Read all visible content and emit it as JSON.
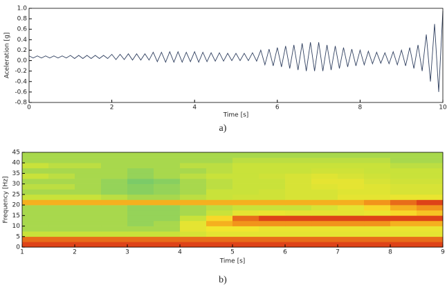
{
  "chart_data": [
    {
      "type": "line",
      "x_label": "Time [s]",
      "y_label": "Aceleration [g]",
      "caption": "a)",
      "color": "#2f3f5f",
      "x": [
        0,
        0.1,
        0.2,
        0.3,
        0.4,
        0.5,
        0.6,
        0.7,
        0.8,
        0.9,
        1,
        1.1,
        1.2,
        1.3,
        1.4,
        1.5,
        1.6,
        1.7,
        1.8,
        1.9,
        2,
        2.1,
        2.2,
        2.3,
        2.4,
        2.5,
        2.6,
        2.7,
        2.8,
        2.9,
        3,
        3.1,
        3.2,
        3.3,
        3.4,
        3.5,
        3.6,
        3.7,
        3.8,
        3.9,
        4,
        4.1,
        4.2,
        4.3,
        4.4,
        4.5,
        4.6,
        4.7,
        4.8,
        4.9,
        5,
        5.1,
        5.2,
        5.3,
        5.4,
        5.5,
        5.6,
        5.7,
        5.8,
        5.9,
        6,
        6.1,
        6.2,
        6.3,
        6.4,
        6.5,
        6.6,
        6.7,
        6.8,
        6.9,
        7,
        7.1,
        7.2,
        7.3,
        7.4,
        7.5,
        7.6,
        7.7,
        7.8,
        7.9,
        8,
        8.1,
        8.2,
        8.3,
        8.4,
        8.5,
        8.6,
        8.7,
        8.8,
        8.9,
        9,
        9.1,
        9.2,
        9.3,
        9.4,
        9.5,
        9.6,
        9.7,
        9.8,
        9.9,
        10
      ],
      "values": [
        0.09,
        0.05,
        0.09,
        0.05,
        0.09,
        0.05,
        0.09,
        0.05,
        0.09,
        0.05,
        0.1,
        0.04,
        0.1,
        0.04,
        0.1,
        0.04,
        0.1,
        0.04,
        0.1,
        0.04,
        0.12,
        0.02,
        0.12,
        0.02,
        0.13,
        0.01,
        0.13,
        0.01,
        0.13,
        0.01,
        0.16,
        -0.02,
        0.16,
        -0.03,
        0.17,
        -0.03,
        0.17,
        -0.03,
        0.16,
        -0.02,
        0.17,
        -0.03,
        0.16,
        -0.02,
        0.15,
        -0.01,
        0.15,
        -0.01,
        0.14,
        0.0,
        0.14,
        0.0,
        0.14,
        0.0,
        0.15,
        -0.01,
        0.2,
        -0.08,
        0.22,
        -0.1,
        0.25,
        -0.12,
        0.28,
        -0.15,
        0.3,
        -0.18,
        0.33,
        -0.2,
        0.35,
        -0.2,
        0.35,
        -0.2,
        0.3,
        -0.18,
        0.28,
        -0.15,
        0.25,
        -0.12,
        0.22,
        -0.1,
        0.2,
        -0.08,
        0.18,
        -0.06,
        0.16,
        -0.05,
        0.15,
        -0.06,
        0.17,
        -0.08,
        0.2,
        -0.1,
        0.25,
        -0.15,
        0.3,
        -0.2,
        0.5,
        -0.4,
        0.7,
        -0.6,
        0.95
      ],
      "xlim": [
        0,
        10
      ],
      "xticks": [
        0,
        2,
        4,
        6,
        8,
        10
      ],
      "ylim": [
        -0.8,
        1.0
      ],
      "yticks": [
        -0.8,
        -0.6,
        -0.4,
        -0.2,
        {
          "value": 0,
          "label": "0.0"
        },
        0.2,
        0.4,
        0.6,
        0.8,
        {
          "value": 1,
          "label": "1.0"
        }
      ]
    },
    {
      "type": "heatmap",
      "x_label": "Time [s]",
      "y_label": "Frequency [Hz]",
      "caption": "b)",
      "xbins": [
        1,
        1.5,
        2,
        2.5,
        3,
        3.5,
        4,
        4.5,
        5,
        5.5,
        6,
        6.5,
        7,
        7.5,
        8,
        8.5,
        9
      ],
      "ybins": [
        0,
        2.5,
        5,
        7.5,
        10,
        12.5,
        15,
        17.5,
        20,
        22.5,
        25,
        27.5,
        30,
        32.5,
        35,
        37.5,
        40,
        42.5,
        45
      ],
      "zlim": [
        0,
        1
      ],
      "colors": [
        "#1f4fd6",
        "#34b3d0",
        "#5cc27a",
        "#c9e23a",
        "#f7e62c",
        "#f5a21c",
        "#d41a16"
      ],
      "z": [
        [
          0.95,
          0.95,
          0.95,
          0.95,
          0.95,
          0.95,
          0.95,
          0.95,
          0.95,
          0.95,
          0.95,
          0.95,
          0.95,
          0.95,
          0.95,
          0.95
        ],
        [
          0.9,
          0.9,
          0.9,
          0.9,
          0.9,
          0.9,
          0.9,
          0.9,
          0.9,
          0.9,
          0.9,
          0.9,
          0.9,
          0.9,
          0.9,
          0.9
        ],
        [
          0.5,
          0.5,
          0.5,
          0.5,
          0.5,
          0.5,
          0.55,
          0.6,
          0.6,
          0.6,
          0.6,
          0.6,
          0.6,
          0.6,
          0.6,
          0.6
        ],
        [
          0.45,
          0.45,
          0.45,
          0.45,
          0.45,
          0.45,
          0.6,
          0.65,
          0.65,
          0.62,
          0.62,
          0.62,
          0.62,
          0.62,
          0.62,
          0.62
        ],
        [
          0.45,
          0.45,
          0.45,
          0.45,
          0.42,
          0.45,
          0.6,
          0.8,
          0.85,
          0.85,
          0.85,
          0.85,
          0.85,
          0.85,
          0.8,
          0.8
        ],
        [
          0.45,
          0.45,
          0.45,
          0.45,
          0.42,
          0.42,
          0.5,
          0.7,
          0.9,
          0.95,
          0.95,
          0.95,
          0.95,
          0.95,
          0.95,
          0.95
        ],
        [
          0.45,
          0.45,
          0.45,
          0.45,
          0.42,
          0.42,
          0.45,
          0.5,
          0.6,
          0.62,
          0.6,
          0.6,
          0.6,
          0.62,
          0.7,
          0.75
        ],
        [
          0.45,
          0.45,
          0.45,
          0.45,
          0.42,
          0.42,
          0.45,
          0.48,
          0.5,
          0.5,
          0.5,
          0.55,
          0.6,
          0.7,
          0.8,
          0.85
        ],
        [
          0.8,
          0.8,
          0.8,
          0.8,
          0.8,
          0.8,
          0.8,
          0.8,
          0.8,
          0.8,
          0.8,
          0.8,
          0.8,
          0.85,
          0.9,
          0.95
        ],
        [
          0.5,
          0.5,
          0.5,
          0.48,
          0.45,
          0.45,
          0.48,
          0.5,
          0.52,
          0.52,
          0.55,
          0.55,
          0.6,
          0.6,
          0.62,
          0.62
        ],
        [
          0.45,
          0.45,
          0.45,
          0.42,
          0.4,
          0.42,
          0.45,
          0.5,
          0.5,
          0.52,
          0.55,
          0.55,
          0.58,
          0.58,
          0.55,
          0.55
        ],
        [
          0.48,
          0.48,
          0.45,
          0.42,
          0.4,
          0.42,
          0.45,
          0.48,
          0.5,
          0.5,
          0.55,
          0.58,
          0.6,
          0.58,
          0.55,
          0.55
        ],
        [
          0.45,
          0.45,
          0.45,
          0.42,
          0.38,
          0.4,
          0.45,
          0.48,
          0.5,
          0.5,
          0.55,
          0.6,
          0.6,
          0.55,
          0.52,
          0.52
        ],
        [
          0.5,
          0.48,
          0.45,
          0.45,
          0.42,
          0.45,
          0.48,
          0.5,
          0.5,
          0.52,
          0.55,
          0.58,
          0.55,
          0.52,
          0.5,
          0.5
        ],
        [
          0.45,
          0.45,
          0.45,
          0.45,
          0.42,
          0.45,
          0.45,
          0.48,
          0.5,
          0.5,
          0.5,
          0.52,
          0.52,
          0.5,
          0.5,
          0.5
        ],
        [
          0.5,
          0.48,
          0.48,
          0.45,
          0.45,
          0.45,
          0.48,
          0.48,
          0.5,
          0.5,
          0.5,
          0.5,
          0.5,
          0.5,
          0.48,
          0.48
        ],
        [
          0.45,
          0.45,
          0.45,
          0.45,
          0.45,
          0.45,
          0.45,
          0.45,
          0.48,
          0.48,
          0.48,
          0.48,
          0.48,
          0.48,
          0.45,
          0.45
        ],
        [
          0.45,
          0.45,
          0.45,
          0.45,
          0.45,
          0.45,
          0.45,
          0.45,
          0.45,
          0.45,
          0.45,
          0.45,
          0.45,
          0.45,
          0.45,
          0.45
        ]
      ],
      "xlim": [
        1,
        9
      ],
      "xticks": [
        1,
        2,
        3,
        4,
        5,
        6,
        7,
        8,
        9
      ],
      "ylim": [
        0,
        45
      ],
      "yticks": [
        0,
        5,
        10,
        15,
        20,
        25,
        30,
        35,
        40,
        45
      ]
    }
  ]
}
